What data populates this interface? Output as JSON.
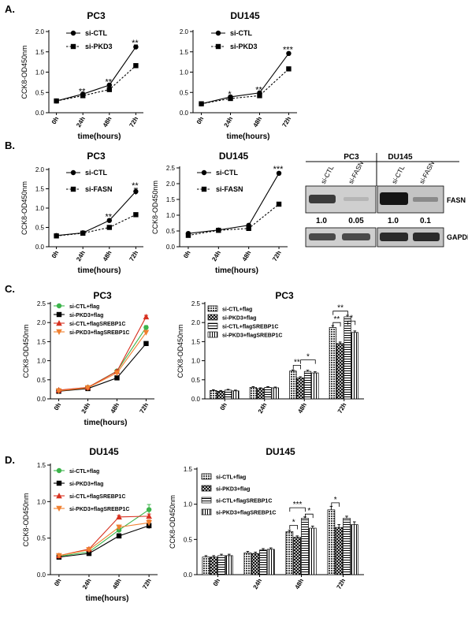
{
  "figure": {
    "panel_labels": [
      "A.",
      "B.",
      "C.",
      "D."
    ],
    "wb": {
      "groups": [
        "PC3",
        "DU145"
      ],
      "lanes": [
        "si-CTL",
        "si-FASN",
        "si-CTL",
        "si-FASN"
      ],
      "values": [
        "1.0",
        "0.05",
        "1.0",
        "0.1"
      ],
      "proteins": [
        "FASN",
        "GAPDH"
      ]
    }
  },
  "chart_data": [
    {
      "id": "A1",
      "type": "line",
      "title": "PC3",
      "xlabel": "time(hours)",
      "ylabel": "CCK8-OD450nm",
      "categories": [
        "0h",
        "24h",
        "48h",
        "72h"
      ],
      "ylim": [
        0.0,
        2.0
      ],
      "yticks": [
        "0.0",
        "0.5",
        "1.0",
        "1.5",
        "2.0"
      ],
      "legend_position": "top-left",
      "series": [
        {
          "name": "si-CTL",
          "values": [
            0.29,
            0.46,
            0.68,
            1.62
          ],
          "err": [
            0.02,
            0.02,
            0.03,
            0.05
          ],
          "marker": "circle",
          "dash": false,
          "color": "#000000"
        },
        {
          "name": "si-PKD3",
          "values": [
            0.29,
            0.42,
            0.57,
            1.16
          ],
          "err": [
            0.02,
            0.02,
            0.02,
            0.03
          ],
          "marker": "square",
          "dash": true,
          "color": "#000000"
        }
      ],
      "annotations": [
        {
          "x": "24h",
          "y": 0.5,
          "text": "**"
        },
        {
          "x": "48h",
          "y": 0.73,
          "text": "**"
        },
        {
          "x": "72h",
          "y": 1.69,
          "text": "**"
        }
      ]
    },
    {
      "id": "A2",
      "type": "line",
      "title": "DU145",
      "xlabel": "time(hours)",
      "ylabel": "",
      "categories": [
        "0h",
        "24h",
        "48h",
        "72h"
      ],
      "ylim": [
        0.0,
        2.0
      ],
      "yticks": [
        "0.0",
        "0.5",
        "1.0",
        "1.5",
        "2.0"
      ],
      "legend_position": "top-left",
      "series": [
        {
          "name": "si-CTL",
          "values": [
            0.22,
            0.39,
            0.49,
            1.46
          ],
          "err": [
            0.01,
            0.02,
            0.02,
            0.03
          ],
          "marker": "circle",
          "dash": false,
          "color": "#000000"
        },
        {
          "name": "si-PKD3",
          "values": [
            0.22,
            0.35,
            0.42,
            1.08
          ],
          "err": [
            0.01,
            0.02,
            0.02,
            0.03
          ],
          "marker": "square",
          "dash": true,
          "color": "#000000"
        }
      ],
      "annotations": [
        {
          "x": "24h",
          "y": 0.43,
          "text": "*"
        },
        {
          "x": "48h",
          "y": 0.53,
          "text": "**"
        },
        {
          "x": "72h",
          "y": 1.52,
          "text": "***"
        }
      ]
    },
    {
      "id": "B1",
      "type": "line",
      "title": "PC3",
      "xlabel": "time(hours)",
      "ylabel": "CCK8-OD450nm",
      "categories": [
        "0h",
        "24h",
        "48h",
        "72h"
      ],
      "ylim": [
        0.0,
        2.0
      ],
      "yticks": [
        "0.0",
        "0.5",
        "1.0",
        "1.5",
        "2.0"
      ],
      "legend_position": "top-left",
      "series": [
        {
          "name": "si-CTL",
          "values": [
            0.29,
            0.36,
            0.68,
            1.43
          ],
          "err": [
            0.02,
            0.02,
            0.03,
            0.08
          ],
          "marker": "circle",
          "dash": false,
          "color": "#000000"
        },
        {
          "name": "si-FASN",
          "values": [
            0.28,
            0.35,
            0.5,
            0.83
          ],
          "err": [
            0.02,
            0.02,
            0.02,
            0.03
          ],
          "marker": "square",
          "dash": true,
          "color": "#000000"
        }
      ],
      "annotations": [
        {
          "x": "48h",
          "y": 0.74,
          "text": "**"
        },
        {
          "x": "72h",
          "y": 1.55,
          "text": "**"
        }
      ]
    },
    {
      "id": "B2",
      "type": "line",
      "title": "DU145",
      "xlabel": "time(hours)",
      "ylabel": "CCK8-OD450nm",
      "categories": [
        "0h",
        "24h",
        "48h",
        "72h"
      ],
      "ylim": [
        0.0,
        2.5
      ],
      "yticks": [
        "0.0",
        "0.5",
        "1.0",
        "1.5",
        "2.0",
        "2.5"
      ],
      "legend_position": "top-left",
      "series": [
        {
          "name": "si-CTL",
          "values": [
            0.42,
            0.53,
            0.68,
            2.33
          ],
          "err": [
            0.02,
            0.02,
            0.02,
            0.04
          ],
          "marker": "circle",
          "dash": false,
          "color": "#000000"
        },
        {
          "name": "si-FASN",
          "values": [
            0.36,
            0.52,
            0.58,
            1.35
          ],
          "err": [
            0.02,
            0.02,
            0.02,
            0.03
          ],
          "marker": "square",
          "dash": true,
          "color": "#000000"
        }
      ],
      "annotations": [
        {
          "x": "72h",
          "y": 2.42,
          "text": "***"
        }
      ]
    },
    {
      "id": "C1",
      "type": "line",
      "title": "PC3",
      "xlabel": "time(hours)",
      "ylabel": "CCK8-OD450nm",
      "categories": [
        "0h",
        "24h",
        "48h",
        "72h"
      ],
      "ylim": [
        0.0,
        2.5
      ],
      "yticks": [
        "0.0",
        "0.5",
        "1.0",
        "1.5",
        "2.0",
        "2.5"
      ],
      "legend_position": "top-left",
      "series": [
        {
          "name": "si-CTL+flag",
          "values": [
            0.22,
            0.3,
            0.73,
            1.87
          ],
          "err": [
            0.02,
            0.02,
            0.03,
            0.05
          ],
          "marker": "circle",
          "dash": false,
          "color": "#3cb44b"
        },
        {
          "name": "si-PKD3+flag",
          "values": [
            0.2,
            0.27,
            0.55,
            1.45
          ],
          "err": [
            0.02,
            0.02,
            0.03,
            0.04
          ],
          "marker": "square",
          "dash": false,
          "color": "#000000"
        },
        {
          "name": "si-CTL+flagSREBP1C",
          "values": [
            0.23,
            0.3,
            0.72,
            2.15
          ],
          "err": [
            0.02,
            0.02,
            0.03,
            0.04
          ],
          "marker": "triangle",
          "dash": false,
          "color": "#d7301f"
        },
        {
          "name": "si-PKD3+flagSREBP1C",
          "values": [
            0.21,
            0.29,
            0.68,
            1.74
          ],
          "err": [
            0.02,
            0.02,
            0.03,
            0.04
          ],
          "marker": "triangle-down",
          "dash": false,
          "color": "#f08030"
        }
      ]
    },
    {
      "id": "C2",
      "type": "bar",
      "title": "PC3",
      "xlabel": "",
      "ylabel": "CCK8-OD450nm",
      "categories": [
        "0h",
        "24h",
        "48h",
        "72h"
      ],
      "ylim": [
        0.0,
        2.5
      ],
      "yticks": [
        "0.0",
        "0.5",
        "1.0",
        "1.5",
        "2.0",
        "2.5"
      ],
      "legend_position": "top-left",
      "series": [
        {
          "name": "si-CTL+flag",
          "values": [
            0.22,
            0.3,
            0.73,
            1.87
          ],
          "err": [
            0.02,
            0.02,
            0.03,
            0.05
          ],
          "pattern": "p1"
        },
        {
          "name": "si-PKD3+flag",
          "values": [
            0.2,
            0.27,
            0.55,
            1.45
          ],
          "err": [
            0.02,
            0.02,
            0.03,
            0.04
          ],
          "pattern": "p2"
        },
        {
          "name": "si-CTL+flagSREBP1C",
          "values": [
            0.23,
            0.3,
            0.72,
            2.15
          ],
          "err": [
            0.02,
            0.02,
            0.03,
            0.04
          ],
          "pattern": "p3"
        },
        {
          "name": "si-PKD3+flagSREBP1C",
          "values": [
            0.21,
            0.29,
            0.68,
            1.74
          ],
          "err": [
            0.02,
            0.02,
            0.03,
            0.04
          ],
          "pattern": "p4"
        }
      ],
      "brackets": [
        {
          "cat": 2,
          "from": 0,
          "to": 1,
          "y": 0.88,
          "text": "**"
        },
        {
          "cat": 2,
          "from": 1,
          "to": 3,
          "y": 1.02,
          "text": "*"
        },
        {
          "cat": 3,
          "from": 0,
          "to": 1,
          "y": 2.0,
          "text": "**"
        },
        {
          "cat": 3,
          "from": 0,
          "to": 2,
          "y": 2.3,
          "text": "**"
        },
        {
          "cat": 3,
          "from": 2,
          "to": 3,
          "y": 2.04,
          "text": "*"
        }
      ]
    },
    {
      "id": "D1",
      "type": "line",
      "title": "DU145",
      "xlabel": "time(hours)",
      "ylabel": "CCK8-OD450nm",
      "categories": [
        "0h",
        "24h",
        "48h",
        "72h"
      ],
      "ylim": [
        0.0,
        1.5
      ],
      "yticks": [
        "0.0",
        "0.5",
        "1.0",
        "1.5"
      ],
      "legend_position": "top-left",
      "series": [
        {
          "name": "si-CTL+flag",
          "values": [
            0.25,
            0.31,
            0.61,
            0.89
          ],
          "err": [
            0.02,
            0.02,
            0.03,
            0.07
          ],
          "marker": "circle",
          "dash": false,
          "color": "#3cb44b"
        },
        {
          "name": "si-PKD3+flag",
          "values": [
            0.24,
            0.29,
            0.53,
            0.67
          ],
          "err": [
            0.02,
            0.02,
            0.03,
            0.04
          ],
          "marker": "square",
          "dash": false,
          "color": "#000000"
        },
        {
          "name": "si-CTL+flagSREBP1C",
          "values": [
            0.26,
            0.35,
            0.79,
            0.8
          ],
          "err": [
            0.02,
            0.02,
            0.02,
            0.03
          ],
          "marker": "triangle",
          "dash": false,
          "color": "#d7301f"
        },
        {
          "name": "si-PKD3+flagSREBP1C",
          "values": [
            0.26,
            0.34,
            0.65,
            0.71
          ],
          "err": [
            0.02,
            0.02,
            0.03,
            0.04
          ],
          "marker": "triangle-down",
          "dash": false,
          "color": "#f08030"
        }
      ]
    },
    {
      "id": "D2",
      "type": "bar",
      "title": "DU145",
      "xlabel": "",
      "ylabel": "CCK8-OD450nm",
      "categories": [
        "0h",
        "24h",
        "48h",
        "72h"
      ],
      "ylim": [
        0.0,
        1.5
      ],
      "yticks": [
        "0.0",
        "0.5",
        "1.0",
        "1.5"
      ],
      "legend_position": "top-left",
      "series": [
        {
          "name": "si-CTL+flag",
          "values": [
            0.25,
            0.31,
            0.61,
            0.92
          ],
          "err": [
            0.02,
            0.02,
            0.02,
            0.05
          ],
          "pattern": "p1"
        },
        {
          "name": "si-PKD3+flag",
          "values": [
            0.25,
            0.3,
            0.53,
            0.67
          ],
          "err": [
            0.02,
            0.02,
            0.02,
            0.04
          ],
          "pattern": "p2"
        },
        {
          "name": "si-CTL+flagSREBP1C",
          "values": [
            0.27,
            0.35,
            0.8,
            0.8
          ],
          "err": [
            0.02,
            0.02,
            0.02,
            0.03
          ],
          "pattern": "p3"
        },
        {
          "name": "si-PKD3+flagSREBP1C",
          "values": [
            0.27,
            0.36,
            0.66,
            0.71
          ],
          "err": [
            0.02,
            0.02,
            0.03,
            0.04
          ],
          "pattern": "p4"
        }
      ],
      "brackets": [
        {
          "cat": 2,
          "from": 0,
          "to": 1,
          "y": 0.7,
          "text": "*"
        },
        {
          "cat": 2,
          "from": 0,
          "to": 2,
          "y": 0.95,
          "text": "***"
        },
        {
          "cat": 2,
          "from": 2,
          "to": 3,
          "y": 0.86,
          "text": "*"
        },
        {
          "cat": 3,
          "from": 0,
          "to": 1,
          "y": 1.02,
          "text": "*"
        }
      ]
    }
  ]
}
